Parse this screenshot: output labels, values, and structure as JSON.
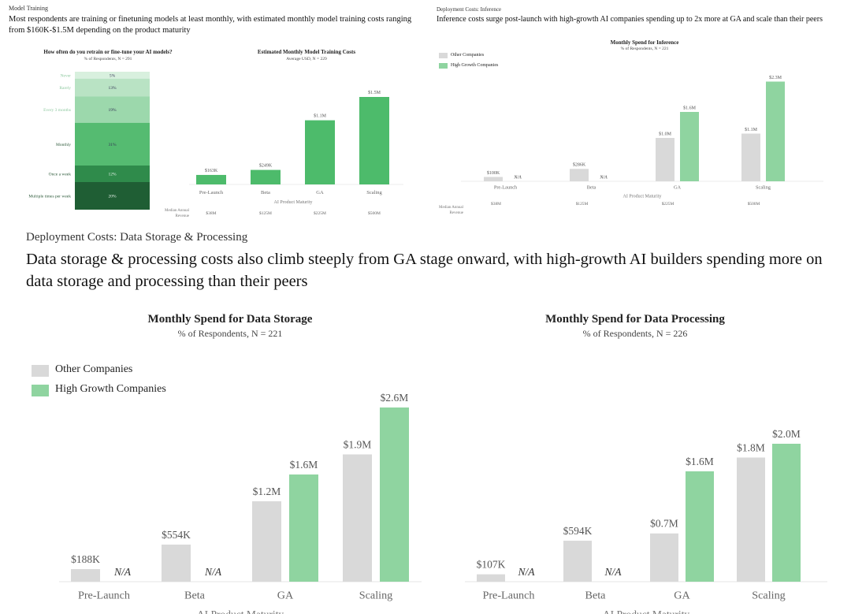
{
  "model_training": {
    "kicker": "Model Training",
    "headline": "Most respondents are training or finetuning models at least monthly, with estimated monthly model training costs ranging from $160K-$1.5M depending on the product maturity"
  },
  "inference_panel": {
    "kicker": "Deployment Costs: Inference",
    "headline": "Inference costs surge post-launch with high-growth AI companies spending up to 2x more at GA and scale than their peers"
  },
  "storage_panel": {
    "kicker": "Deployment Costs: Data Storage & Processing",
    "headline": "Data storage & processing costs also climb steeply from GA stage onward, with high-growth AI builders spending more on data storage and processing than their peers"
  },
  "legend": {
    "other": "Other Companies",
    "high_growth": "High Growth Companies"
  },
  "colors": {
    "other": "#d9d9d9",
    "high_growth": "#8fd4a0",
    "training": "#4dbb6b"
  },
  "chart_data": [
    {
      "id": "retrain_frequency",
      "type": "bar",
      "stacked": true,
      "title": "How often do you retrain or fine-tune your AI models?",
      "subtitle": "% of Respondents, N = 291",
      "categories": [
        "Never",
        "Rarely",
        "Every 3 months",
        "Monthly",
        "Once a week",
        "Multiple times per week"
      ],
      "values": [
        5,
        13,
        19,
        31,
        12,
        20
      ],
      "labels": [
        "5%",
        "13%",
        "19%",
        "31%",
        "12%",
        "20%"
      ],
      "colors": [
        "#d8f0de",
        "#b9e3c4",
        "#9cd8ac",
        "#55bb71",
        "#2f8b4b",
        "#1f5e34"
      ]
    },
    {
      "id": "training_costs",
      "type": "bar",
      "title": "Estimated Monthly Model Training Costs",
      "subtitle": "Average USD, N = 229",
      "xlabel": "AI Product Maturity",
      "categories": [
        "Pre-Launch",
        "Beta",
        "GA",
        "Scaling"
      ],
      "values_musd": [
        0.163,
        0.249,
        1.1,
        1.5
      ],
      "labels": [
        "$163K",
        "$249K",
        "$1.1M",
        "$1.5M"
      ],
      "median_revenue_label": "Median Annual Revenue",
      "median_revenue": [
        "$38M",
        "$125M",
        "$225M",
        "$500M"
      ]
    },
    {
      "id": "inference",
      "type": "bar",
      "title": "Monthly Spend for Inference",
      "subtitle": "% of Respondents, N = 221",
      "xlabel": "AI Product Maturity",
      "categories": [
        "Pre-Launch",
        "Beta",
        "GA",
        "Scaling"
      ],
      "series": [
        {
          "name": "Other Companies",
          "values_musd": [
            0.1,
            0.286,
            1.0,
            1.1
          ],
          "labels": [
            "$100K",
            "$286K",
            "$1.0M",
            "$1.1M"
          ]
        },
        {
          "name": "High Growth Companies",
          "values_musd": [
            null,
            null,
            1.6,
            2.3
          ],
          "labels": [
            "N/A",
            "N/A",
            "$1.6M",
            "$2.3M"
          ]
        }
      ],
      "median_revenue_label": "Median Annual Revenue",
      "median_revenue": [
        "$38M",
        "$125M",
        "$225M",
        "$500M"
      ],
      "legend": "top-left"
    },
    {
      "id": "storage",
      "type": "bar",
      "title": "Monthly Spend for Data Storage",
      "subtitle": "% of Respondents, N = 221",
      "xlabel": "AI Product Maturity",
      "categories": [
        "Pre-Launch",
        "Beta",
        "GA",
        "Scaling"
      ],
      "series": [
        {
          "name": "Other Companies",
          "values_musd": [
            0.188,
            0.554,
            1.2,
            1.9
          ],
          "labels": [
            "$188K",
            "$554K",
            "$1.2M",
            "$1.9M"
          ]
        },
        {
          "name": "High Growth Companies",
          "values_musd": [
            null,
            null,
            1.6,
            2.6
          ],
          "labels": [
            "N/A",
            "N/A",
            "$1.6M",
            "$2.6M"
          ]
        }
      ],
      "legend": "top-left"
    },
    {
      "id": "processing",
      "type": "bar",
      "title": "Monthly Spend for Data Processing",
      "subtitle": "% of Respondents, N = 226",
      "xlabel": "AI Product Maturity",
      "categories": [
        "Pre-Launch",
        "Beta",
        "GA",
        "Scaling"
      ],
      "series": [
        {
          "name": "Other Companies",
          "values_musd": [
            0.107,
            0.594,
            0.7,
            1.8
          ],
          "labels": [
            "$107K",
            "$594K",
            "$0.7M",
            "$1.8M"
          ]
        },
        {
          "name": "High Growth Companies",
          "values_musd": [
            null,
            null,
            1.6,
            2.0
          ],
          "labels": [
            "N/A",
            "N/A",
            "$1.6M",
            "$2.0M"
          ]
        }
      ]
    }
  ]
}
